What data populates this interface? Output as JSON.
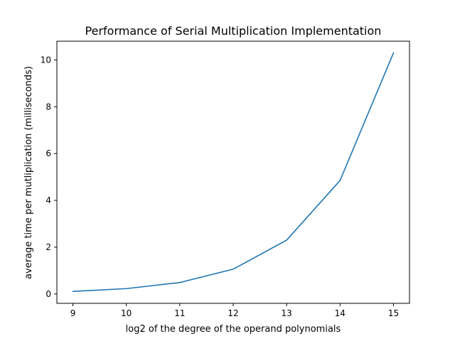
{
  "chart_data": {
    "type": "line",
    "title": "Performance of Serial Multiplication Implementation",
    "xlabel": "log2 of the degree of the operand polynomials",
    "ylabel": "average time per mutliplication (milliseconds)",
    "x": [
      9,
      10,
      11,
      12,
      13,
      14,
      15
    ],
    "series": [
      {
        "values": [
          0.11,
          0.23,
          0.49,
          1.06,
          2.3,
          4.85,
          10.3
        ]
      }
    ],
    "xlim": [
      8.7,
      15.3
    ],
    "ylim": [
      -0.4,
      10.8
    ],
    "xticks": [
      9,
      10,
      11,
      12,
      13,
      14,
      15
    ],
    "yticks": [
      0,
      2,
      4,
      6,
      8,
      10
    ],
    "grid": false,
    "line_color": "#1f77b4"
  }
}
